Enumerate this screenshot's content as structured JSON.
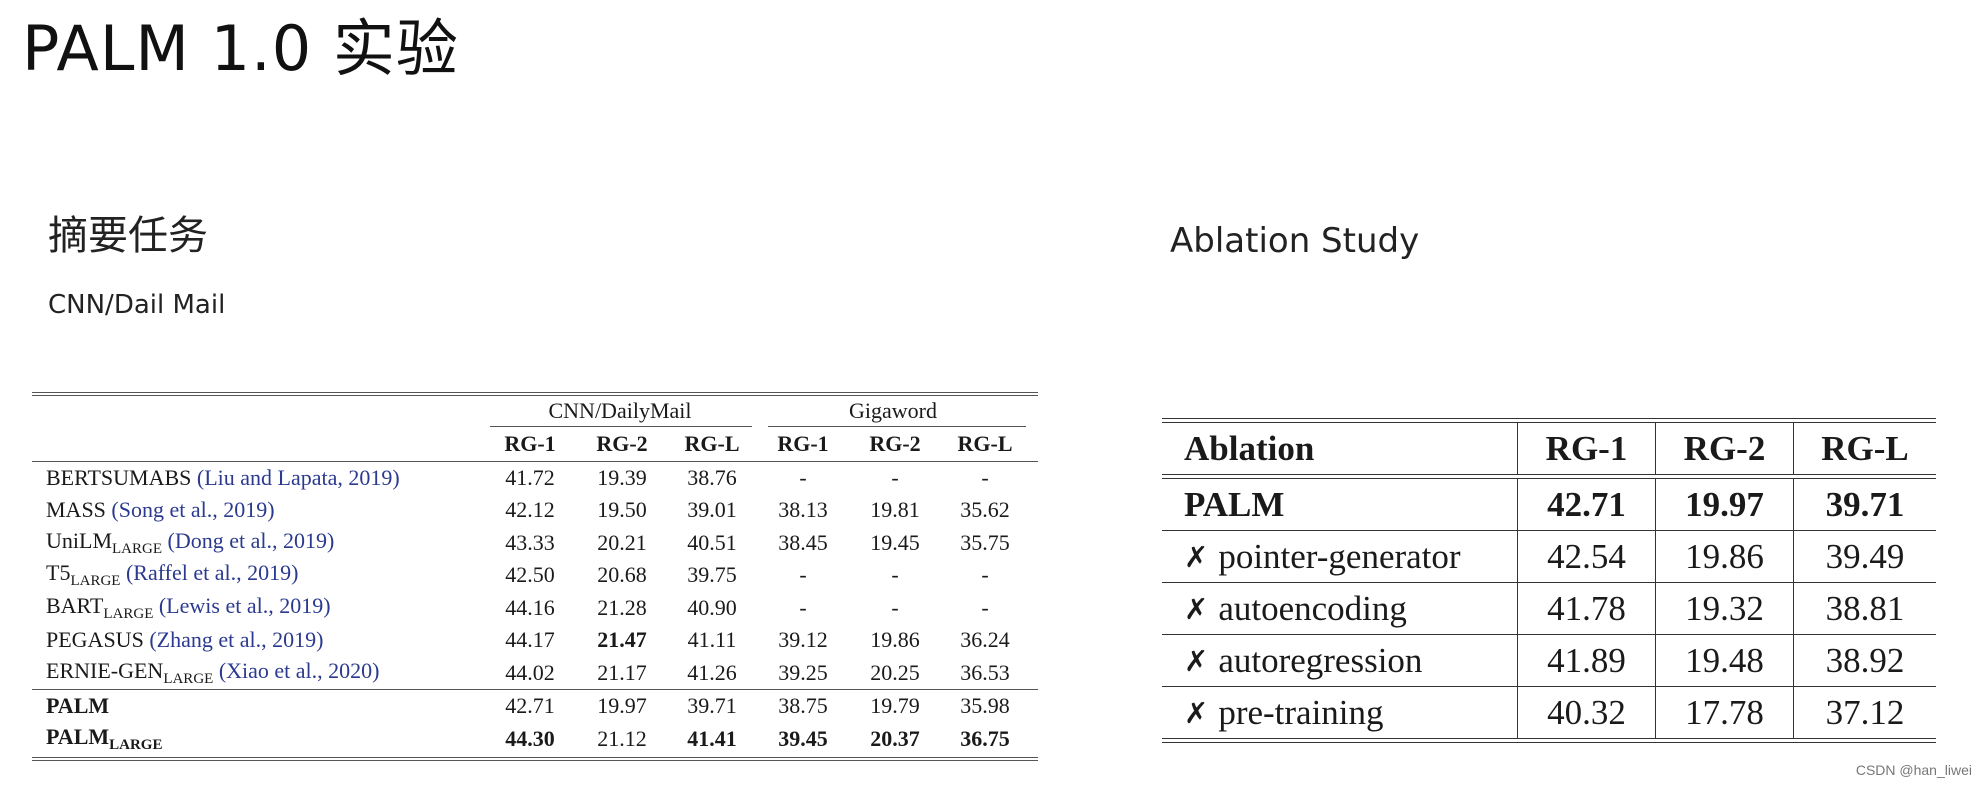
{
  "slide": {
    "title": "PALM 1.0 实验",
    "section_title": "摘要任务",
    "sub_title": "CNN/Dail Mail",
    "ablation_title": "Ablation Study",
    "watermark": "CSDN @han_liwei"
  },
  "results_table": {
    "group_headers": [
      "CNN/DailyMail",
      "Gigaword"
    ],
    "column_headers": [
      "RG-1",
      "RG-2",
      "RG-L",
      "RG-1",
      "RG-2",
      "RG-L"
    ],
    "rows": [
      {
        "model": "BERTSUMABS",
        "sub": "",
        "cite": "(Liu and Lapata, 2019)",
        "values": [
          "41.72",
          "19.39",
          "38.76",
          "-",
          "-",
          "-"
        ]
      },
      {
        "model": "MASS",
        "sub": "",
        "cite": "(Song et al., 2019)",
        "values": [
          "42.12",
          "19.50",
          "39.01",
          "38.13",
          "19.81",
          "35.62"
        ]
      },
      {
        "model": "UniLM",
        "sub": "LARGE",
        "cite": "(Dong et al., 2019)",
        "values": [
          "43.33",
          "20.21",
          "40.51",
          "38.45",
          "19.45",
          "35.75"
        ]
      },
      {
        "model": "T5",
        "sub": "LARGE",
        "cite": "(Raffel et al., 2019)",
        "values": [
          "42.50",
          "20.68",
          "39.75",
          "-",
          "-",
          "-"
        ]
      },
      {
        "model": "BART",
        "sub": "LARGE",
        "cite": "(Lewis et al., 2019)",
        "values": [
          "44.16",
          "21.28",
          "40.90",
          "-",
          "-",
          "-"
        ]
      },
      {
        "model": "PEGASUS",
        "sub": "",
        "cite": "(Zhang et al., 2019)",
        "values": [
          "44.17",
          "21.47",
          "41.11",
          "39.12",
          "19.86",
          "36.24"
        ]
      },
      {
        "model": "ERNIE-GEN",
        "sub": "LARGE",
        "cite": "(Xiao et al., 2020)",
        "values": [
          "44.02",
          "21.17",
          "41.26",
          "39.25",
          "20.25",
          "36.53"
        ]
      }
    ],
    "palm_rows": [
      {
        "model": "PALM",
        "sub": "",
        "values": [
          "42.71",
          "19.97",
          "39.71",
          "38.75",
          "19.79",
          "35.98"
        ]
      },
      {
        "model": "PALM",
        "sub": "LARGE",
        "values": [
          "44.30",
          "21.12",
          "41.41",
          "39.45",
          "20.37",
          "36.75"
        ]
      }
    ]
  },
  "ablation_table": {
    "headers": [
      "Ablation",
      "RG-1",
      "RG-2",
      "RG-L"
    ],
    "palm_row": {
      "label": "PALM",
      "values": [
        "42.71",
        "19.97",
        "39.71"
      ]
    },
    "cross_mark": "✗",
    "rows": [
      {
        "label": "pointer-generator",
        "values": [
          "42.54",
          "19.86",
          "39.49"
        ]
      },
      {
        "label": "autoencoding",
        "values": [
          "41.78",
          "19.32",
          "38.81"
        ]
      },
      {
        "label": "autoregression",
        "values": [
          "41.89",
          "19.48",
          "38.92"
        ]
      },
      {
        "label": "pre-training",
        "values": [
          "40.32",
          "17.78",
          "37.12"
        ]
      }
    ]
  }
}
